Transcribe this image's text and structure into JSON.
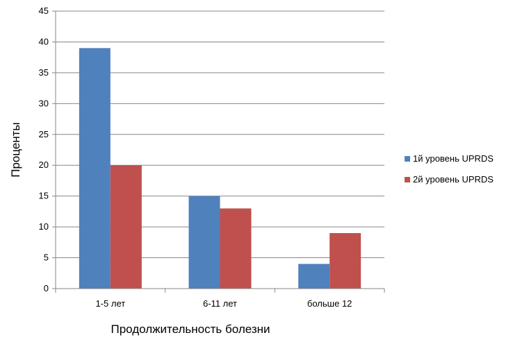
{
  "chart_data": {
    "type": "bar",
    "categories": [
      "1-5 лет",
      "6-11 лет",
      "больше 12"
    ],
    "series": [
      {
        "name": "1й уровень UPRDS",
        "values": [
          39,
          15,
          4
        ],
        "color": "#4f81bd"
      },
      {
        "name": "2й уровень UPRDS",
        "values": [
          20,
          13,
          9
        ],
        "color": "#c0504d"
      }
    ],
    "title": "",
    "xlabel": "Продолжительность болезни",
    "ylabel": "Проценты",
    "ylim": [
      0,
      45
    ],
    "yticks": [
      "0",
      "5",
      "10",
      "15",
      "20",
      "25",
      "30",
      "35",
      "40",
      "45"
    ],
    "grid": true,
    "legend_position": "right"
  }
}
